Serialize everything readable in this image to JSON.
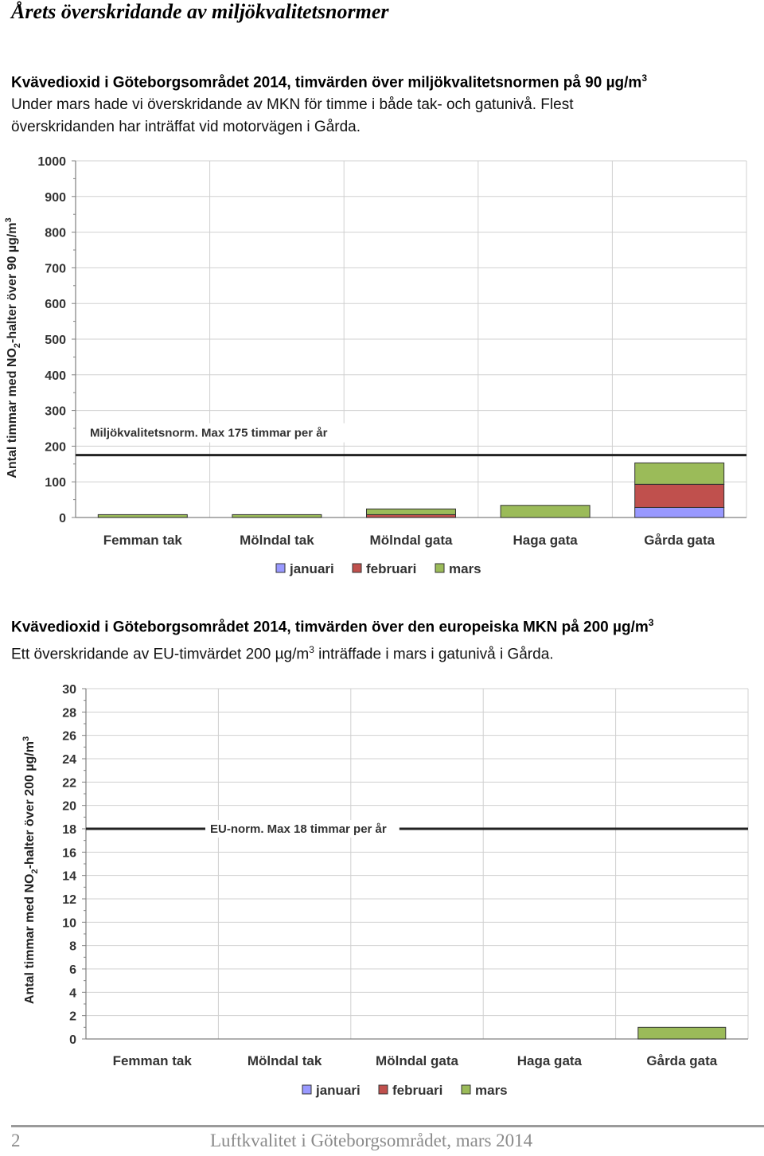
{
  "page": {
    "heading": "Årets överskridande av miljökvalitetsnormer"
  },
  "section1": {
    "title": "Kvävedioxid i Göteborgsområdet 2014, timvärden över miljökvalitetsnormen på 90 µg/m",
    "title_sup": "3",
    "body_line1": "Under mars hade vi överskridande av MKN för timme i både tak- och gatunivå. Flest",
    "body_line2": "överskridanden har inträffat vid motorvägen i Gårda."
  },
  "section2": {
    "title": "Kvävedioxid i Göteborgsområdet 2014, timvärden över den europeiska MKN på 200 µg/m",
    "title_sup": "3",
    "body_part1": "Ett överskridande av EU-timvärdet 200 µg/m",
    "body_sup": "3",
    "body_part2": " inträffade i mars i gatunivå i Gårda."
  },
  "footer": {
    "page_number": "2",
    "title": "Luftkvalitet i Göteborgsområdet, mars 2014"
  },
  "chart_data": [
    {
      "type": "bar",
      "stacked": true,
      "categories": [
        "Femman tak",
        "Mölndal tak",
        "Mölndal gata",
        "Haga gata",
        "Gårda gata"
      ],
      "series": [
        {
          "name": "januari",
          "color": "#9999ff",
          "values": [
            0,
            0,
            0,
            0,
            28
          ]
        },
        {
          "name": "februari",
          "color": "#c0504d",
          "values": [
            0,
            0,
            8,
            0,
            65
          ]
        },
        {
          "name": "mars",
          "color": "#9bbb59",
          "values": [
            8,
            8,
            16,
            34,
            60
          ]
        }
      ],
      "ylabel": "Antal timmar med NO2-halter över 90 µg/m3",
      "ylabel_main": "Antal timmar med NO",
      "ylabel_sub": "2",
      "ylabel_rest": "-halter över 90 µg/m",
      "ylabel_sup": "3",
      "ylim": [
        0,
        1000
      ],
      "yticks": [
        0,
        100,
        200,
        300,
        400,
        500,
        600,
        700,
        800,
        900,
        1000
      ],
      "grid": true,
      "legend": "bottom-center",
      "reference_line": {
        "value": 175,
        "label": "Miljökvalitetsnorm. Max 175 timmar per år"
      }
    },
    {
      "type": "bar",
      "stacked": true,
      "categories": [
        "Femman tak",
        "Mölndal tak",
        "Mölndal gata",
        "Haga gata",
        "Gårda gata"
      ],
      "series": [
        {
          "name": "januari",
          "color": "#9999ff",
          "values": [
            0,
            0,
            0,
            0,
            0
          ]
        },
        {
          "name": "februari",
          "color": "#c0504d",
          "values": [
            0,
            0,
            0,
            0,
            0
          ]
        },
        {
          "name": "mars",
          "color": "#9bbb59",
          "values": [
            0,
            0,
            0,
            0,
            1
          ]
        }
      ],
      "ylabel": "Antal timmar med NO2-halter över 200 µg/m3",
      "ylabel_main": "Antal timmar med NO",
      "ylabel_sub": "2",
      "ylabel_rest": "-halter över 200 µg/m",
      "ylabel_sup": "3",
      "ylim": [
        0,
        30
      ],
      "yticks": [
        0,
        2,
        4,
        6,
        8,
        10,
        12,
        14,
        16,
        18,
        20,
        22,
        24,
        26,
        28,
        30
      ],
      "grid": true,
      "legend": "bottom-center",
      "reference_line": {
        "value": 18,
        "label": "EU-norm. Max 18 timmar per år"
      }
    }
  ]
}
